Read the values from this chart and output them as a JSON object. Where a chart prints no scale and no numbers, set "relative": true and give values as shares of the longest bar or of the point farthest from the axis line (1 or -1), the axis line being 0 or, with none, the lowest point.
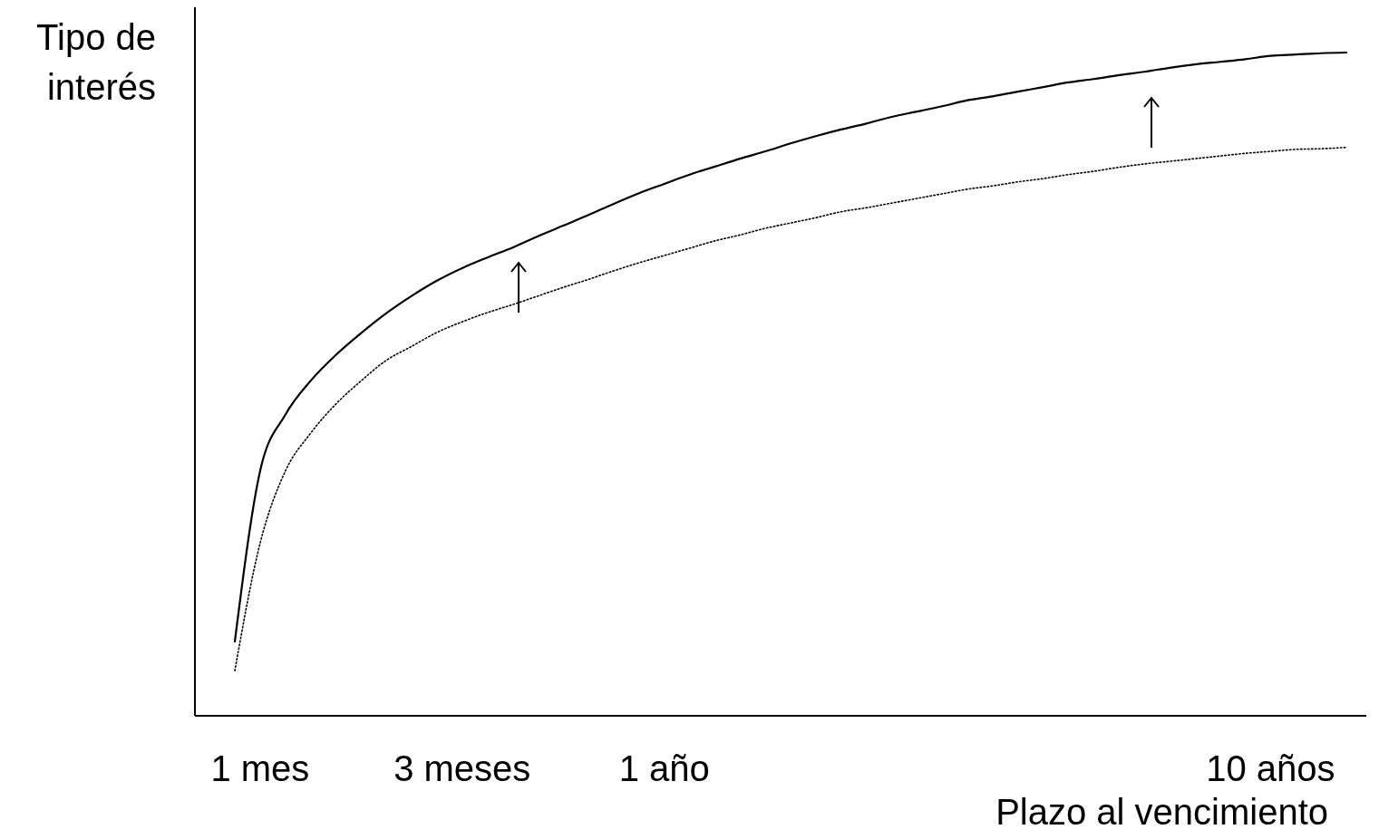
{
  "chart_data": {
    "type": "line",
    "relative": true,
    "xlabel": "Plazo al vencimiento",
    "ylabel": "Tipo de interés",
    "categories": [
      null,
      "1 mes",
      null,
      null,
      null,
      null,
      null,
      null,
      null,
      "3 meses",
      null,
      null,
      null,
      null,
      null,
      null,
      null,
      "1 año",
      null,
      null,
      null,
      null,
      null,
      null,
      null,
      null,
      null,
      null,
      null,
      null,
      null,
      null,
      null,
      null,
      null,
      null,
      null,
      null,
      null,
      null,
      null,
      "10 años",
      null,
      null,
      null
    ],
    "grid": false,
    "series": [
      {
        "color": "#000000",
        "line_style": "solid",
        "values": [
          0.112,
          0.369,
          0.454,
          0.505,
          0.544,
          0.577,
          0.607,
          0.633,
          0.656,
          0.675,
          0.691,
          0.706,
          0.723,
          0.739,
          0.755,
          0.772,
          0.788,
          0.802,
          0.816,
          0.828,
          0.84,
          0.851,
          0.863,
          0.874,
          0.884,
          0.893,
          0.903,
          0.911,
          0.919,
          0.928,
          0.934,
          0.941,
          0.948,
          0.955,
          0.96,
          0.966,
          0.971,
          0.977,
          0.982,
          0.986,
          0.99,
          0.995,
          0.997,
          0.999,
          1
        ]
      },
      {
        "color": "#000000",
        "line_style": "dotted",
        "values": [
          0.068,
          0.26,
          0.369,
          0.426,
          0.47,
          0.505,
          0.536,
          0.557,
          0.578,
          0.594,
          0.608,
          0.62,
          0.633,
          0.646,
          0.658,
          0.671,
          0.683,
          0.694,
          0.705,
          0.716,
          0.725,
          0.735,
          0.743,
          0.751,
          0.76,
          0.766,
          0.773,
          0.78,
          0.787,
          0.794,
          0.799,
          0.805,
          0.81,
          0.816,
          0.821,
          0.827,
          0.832,
          0.836,
          0.84,
          0.844,
          0.848,
          0.851,
          0.854,
          0.855,
          0.857
        ]
      }
    ]
  }
}
